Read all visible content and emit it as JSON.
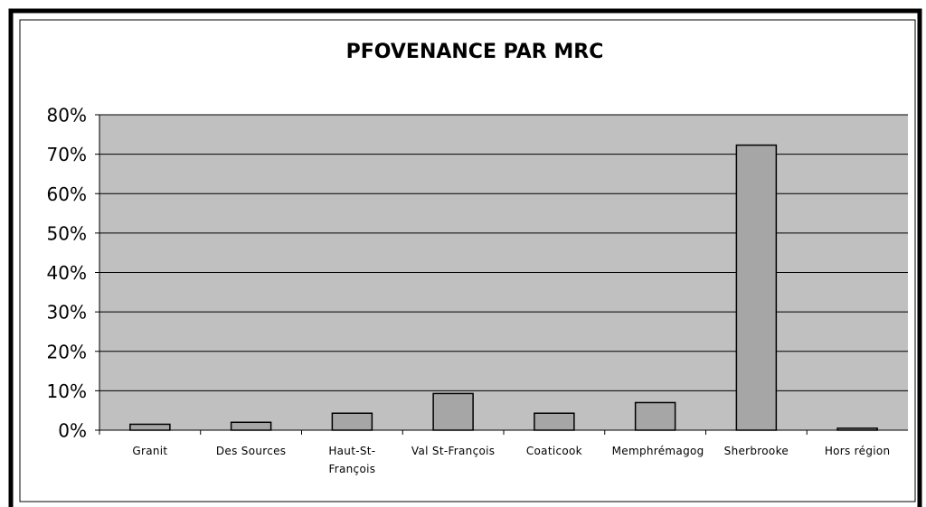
{
  "chart_data": {
    "type": "bar",
    "title": "PFOVENANCE PAR MRC",
    "categories": [
      "Granit",
      "Des Sources",
      "Haut-St-François",
      "Val St-François",
      "Coaticook",
      "Memphrémagog",
      "Sherbrooke",
      "Hors région"
    ],
    "values": [
      1.5,
      2,
      4.3,
      9.3,
      4.3,
      7,
      72.3,
      0.5
    ],
    "color": "#a6a6a6",
    "plot_background": "#c0c0c0",
    "ylim": [
      0,
      80
    ],
    "yticks": [
      {
        "value": 0,
        "label": "0%"
      },
      {
        "value": 10,
        "label": "10%"
      },
      {
        "value": 20,
        "label": "20%"
      },
      {
        "value": 30,
        "label": "30%"
      },
      {
        "value": 40,
        "label": "40%"
      },
      {
        "value": 50,
        "label": "50%"
      },
      {
        "value": 60,
        "label": "60%"
      },
      {
        "value": 70,
        "label": "70%"
      },
      {
        "value": 80,
        "label": "80%"
      }
    ],
    "grid": true
  }
}
